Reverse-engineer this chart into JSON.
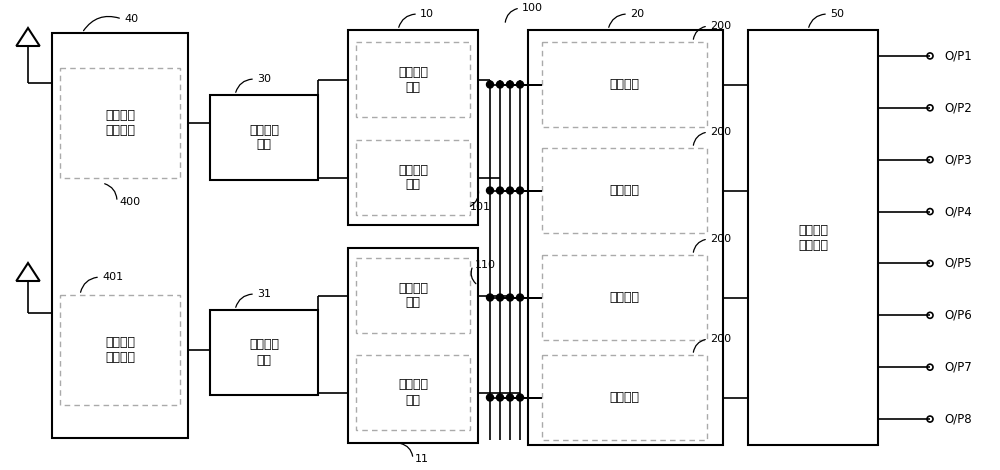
{
  "bg_color": "#ffffff",
  "line_color": "#000000",
  "dashed_color": "#aaaaaa",
  "figsize": [
    10.0,
    4.7
  ],
  "dpi": 100,
  "labels": {
    "rf1": "第一射频\n放大电路",
    "rf2": "第二射频\n放大电路",
    "mix1": "第一混频\n电路",
    "mix2": "第二混频\n电路",
    "amp1": "第一放大\n支路",
    "amp2": "第二放大\n支路",
    "amp3": "第三放大\n支路",
    "amp4": "第四放大\n支路",
    "sw1": "开关电路",
    "sw2": "开关电路",
    "sw3": "开关电路",
    "sw4": "开关电路",
    "if_amp": "第三中频\n放大电路",
    "ports": [
      "O/P1",
      "O/P2",
      "O/P3",
      "O/P4",
      "O/P5",
      "O/P6",
      "O/P7",
      "O/P8"
    ]
  },
  "numbers": {
    "n40": "40",
    "n400": "400",
    "n401": "401",
    "n30": "30",
    "n31": "31",
    "n10": "10",
    "n11": "11",
    "n100": "100",
    "n101": "101",
    "n110": "110",
    "n20": "20",
    "n200": "200",
    "n50": "50"
  }
}
